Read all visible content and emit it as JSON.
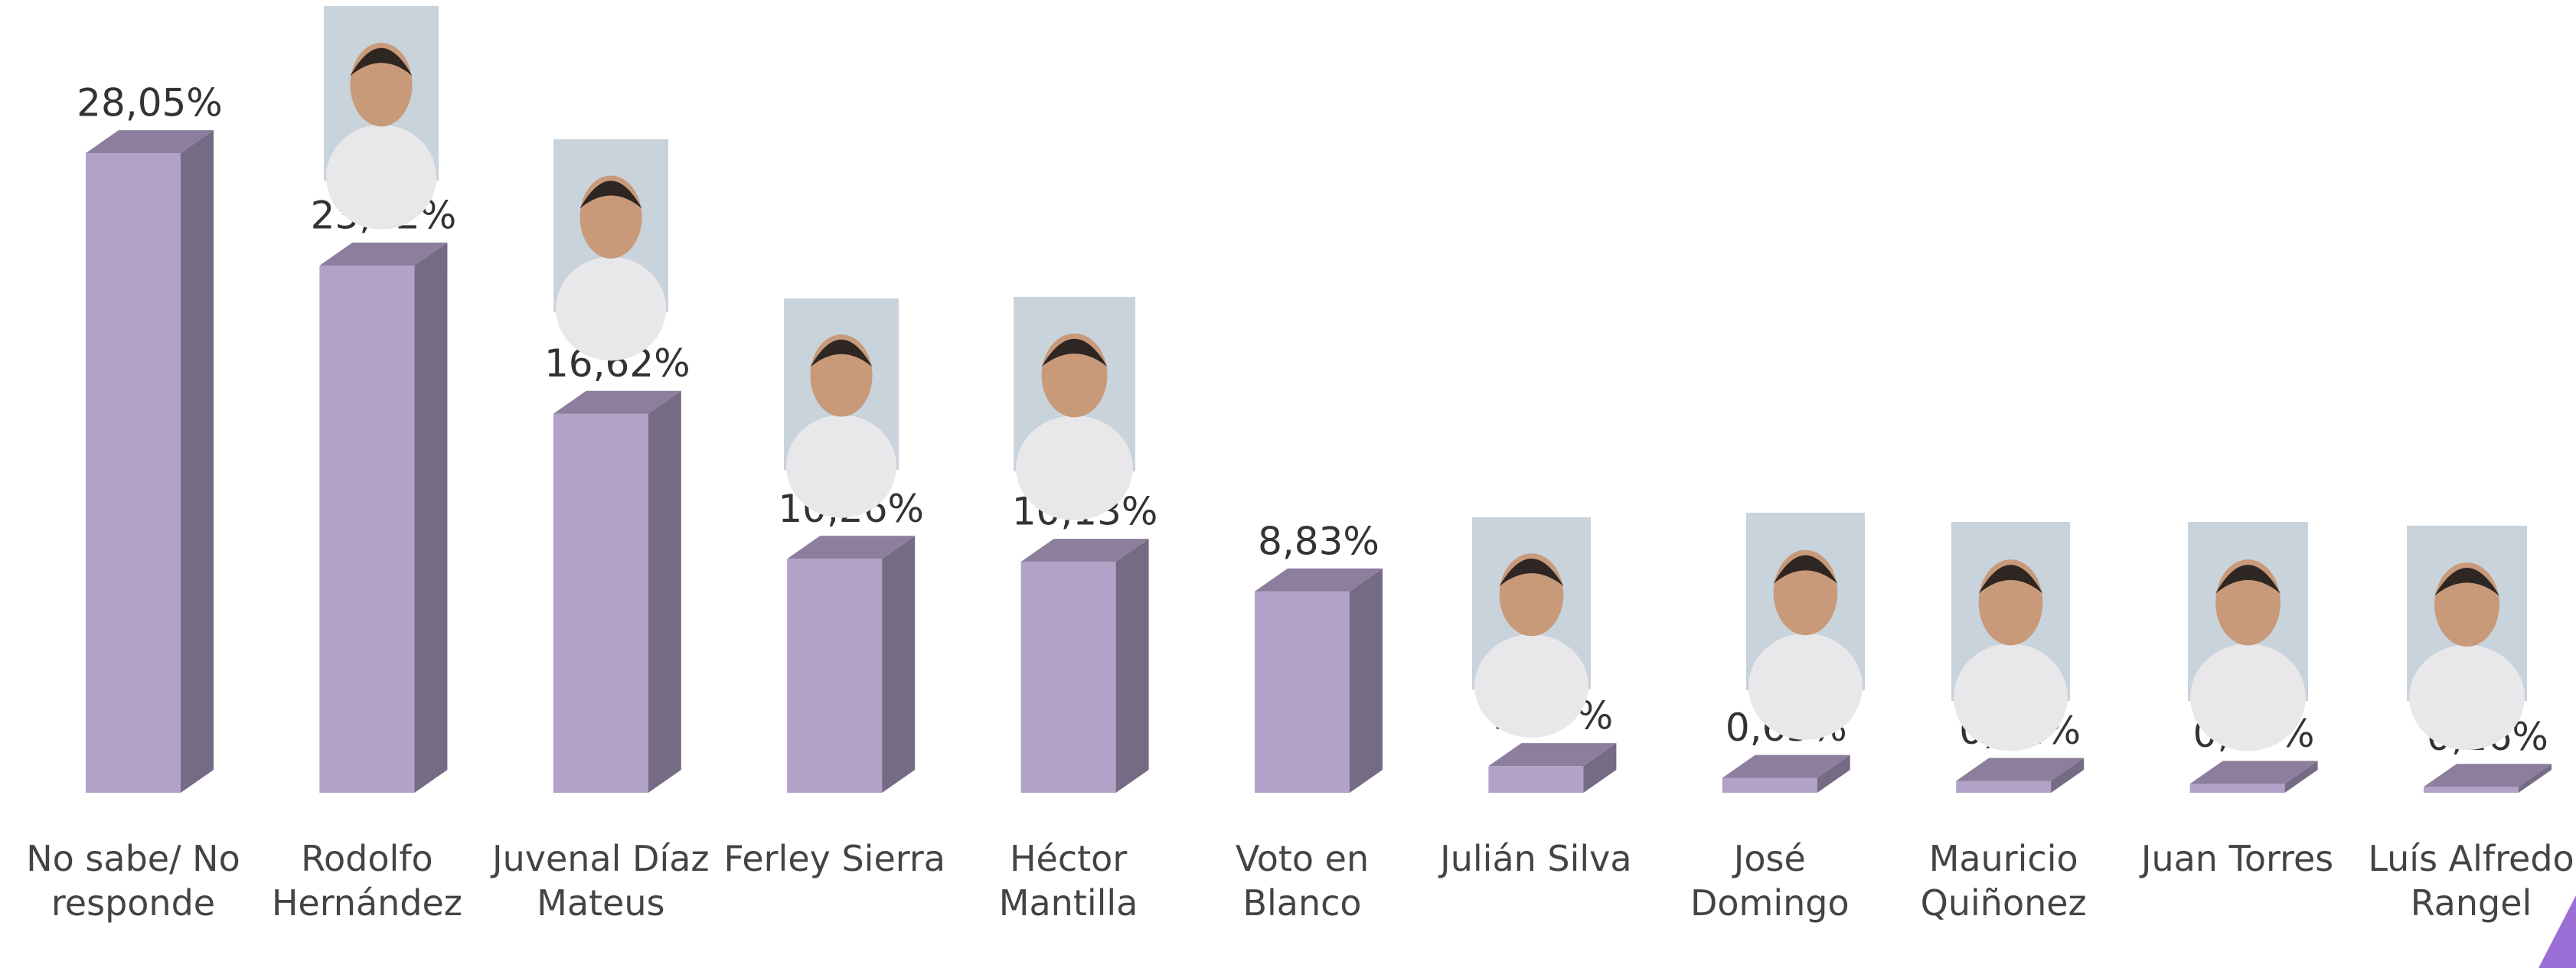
{
  "chart_data": {
    "type": "bar",
    "categories": [
      "No sabe/ No responde",
      "Rodolfo Hernández",
      "Juvenal Díaz Mateus",
      "Ferley Sierra",
      "Héctor Mantilla",
      "Voto en Blanco",
      "Julián Silva",
      "José Domingo",
      "Mauricio Quiñonez",
      "Juan Torres",
      "Luís Alfredo Rangel"
    ],
    "values": [
      28.05,
      23.12,
      16.62,
      10.26,
      10.13,
      8.83,
      1.17,
      0.65,
      0.52,
      0.39,
      0.26
    ],
    "value_labels": [
      "28,05%",
      "23,12%",
      "16,62%",
      "10,26%",
      "10,13%",
      "8,83%",
      "1,17%",
      "0,65%",
      "0,52%",
      "0,39%",
      "0,26%"
    ],
    "color": "#b3a2c8"
  }
}
